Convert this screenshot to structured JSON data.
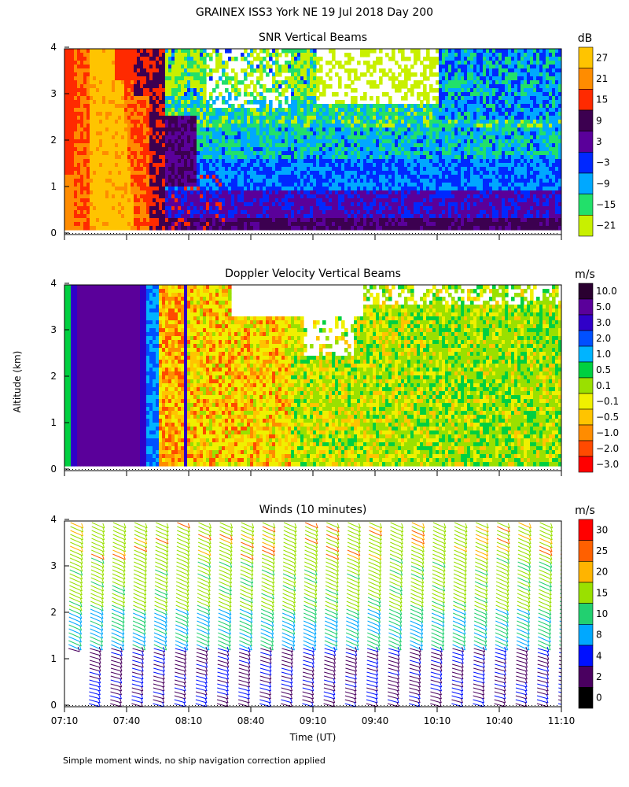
{
  "figure": {
    "title": "GRAINEX ISS3 York NE  19 Jul 2018 Day 200",
    "footnote": "Simple moment winds, no ship navigation correction applied",
    "shared_ylabel": "Altitude (km)",
    "xlabel": "Time (UT)",
    "time_ticks": [
      "07:10",
      "07:40",
      "08:10",
      "08:40",
      "09:10",
      "09:40",
      "10:10",
      "10:40",
      "11:10"
    ],
    "altitude_ticks": [
      "0",
      "1",
      "2",
      "3",
      "4"
    ]
  },
  "chart_data": [
    {
      "type": "heatmap",
      "title": "SNR Vertical Beams",
      "x_range": [
        "07:10",
        "11:10"
      ],
      "y_range_km": [
        0,
        4
      ],
      "colorbar_unit": "dB",
      "colorbar_labels": [
        "27",
        "21",
        "15",
        "9",
        "3",
        "−3",
        "−9",
        "−15",
        "−21"
      ],
      "colorbar_colors": [
        "#ffc400",
        "#ff8c00",
        "#ff2a00",
        "#3c0050",
        "#5a009a",
        "#0028ff",
        "#00a8ff",
        "#22e06a",
        "#c8f000"
      ],
      "description_fields": {
        "strongest_band": "07:15-07:45, 0-4 km, 15 to 27 dB",
        "boundary_layer_top_km": 1.3
      }
    },
    {
      "type": "heatmap",
      "title": "Doppler Velocity Vertical Beams",
      "x_range": [
        "07:10",
        "11:10"
      ],
      "y_range_km": [
        0,
        4
      ],
      "colorbar_unit": "m/s",
      "colorbar_labels": [
        "10.0",
        "5.0",
        "3.0",
        "2.0",
        "1.0",
        "0.5",
        "0.1",
        "−0.1",
        "−0.5",
        "−1.0",
        "−2.0",
        "−3.0"
      ],
      "colorbar_colors": [
        "#2a0030",
        "#5a009a",
        "#3000c8",
        "#0050ff",
        "#00b4ff",
        "#00d040",
        "#9ae000",
        "#f0f000",
        "#ffc400",
        "#ff8c00",
        "#ff4a00",
        "#ff0000"
      ]
    },
    {
      "type": "scatter",
      "title": "Winds (10 minutes)",
      "x_range": [
        "07:10",
        "11:10"
      ],
      "y_range_km": [
        0,
        4
      ],
      "colorbar_unit": "m/s",
      "colorbar_labels": [
        "30",
        "25",
        "20",
        "15",
        "10",
        "8",
        "4",
        "2",
        "0"
      ],
      "colorbar_colors": [
        "#ff0000",
        "#ff6000",
        "#ffb400",
        "#9ae000",
        "#22d070",
        "#00a8ff",
        "#0010ff",
        "#4a0060",
        "#000000"
      ],
      "profile_times": [
        "07:10",
        "07:20",
        "07:30",
        "07:40",
        "07:50",
        "08:00",
        "08:10",
        "08:20",
        "08:30",
        "08:40",
        "08:50",
        "09:00",
        "09:10",
        "09:20",
        "09:30",
        "09:40",
        "09:50",
        "10:00",
        "10:10",
        "10:20",
        "10:30",
        "10:40",
        "10:50",
        "11:00"
      ]
    }
  ]
}
